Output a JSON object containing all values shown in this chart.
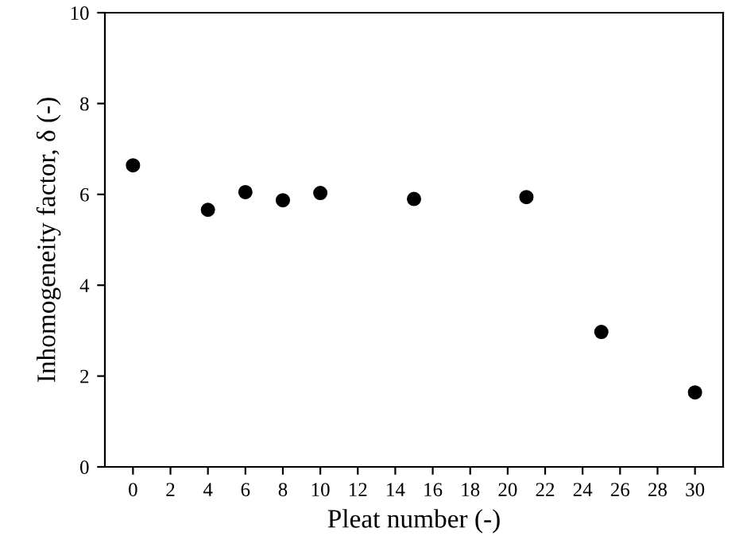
{
  "chart_data": {
    "type": "scatter",
    "xlabel": "Pleat number (-)",
    "ylabel": "Inhomogeneity factor, δ (-)",
    "x": [
      0,
      4,
      6,
      8,
      10,
      15,
      21,
      25,
      30
    ],
    "values": [
      6.64,
      5.66,
      6.05,
      5.87,
      6.03,
      5.9,
      5.94,
      2.97,
      1.64
    ],
    "color": "#000000",
    "marker": "circle",
    "xlim": [
      -1.5,
      31.5
    ],
    "ylim": [
      0,
      10
    ],
    "xticks": [
      0,
      2,
      4,
      6,
      8,
      10,
      12,
      14,
      16,
      18,
      20,
      22,
      24,
      26,
      28,
      30
    ],
    "yticks": [
      0,
      2,
      4,
      6,
      8,
      10
    ],
    "grid": false
  }
}
